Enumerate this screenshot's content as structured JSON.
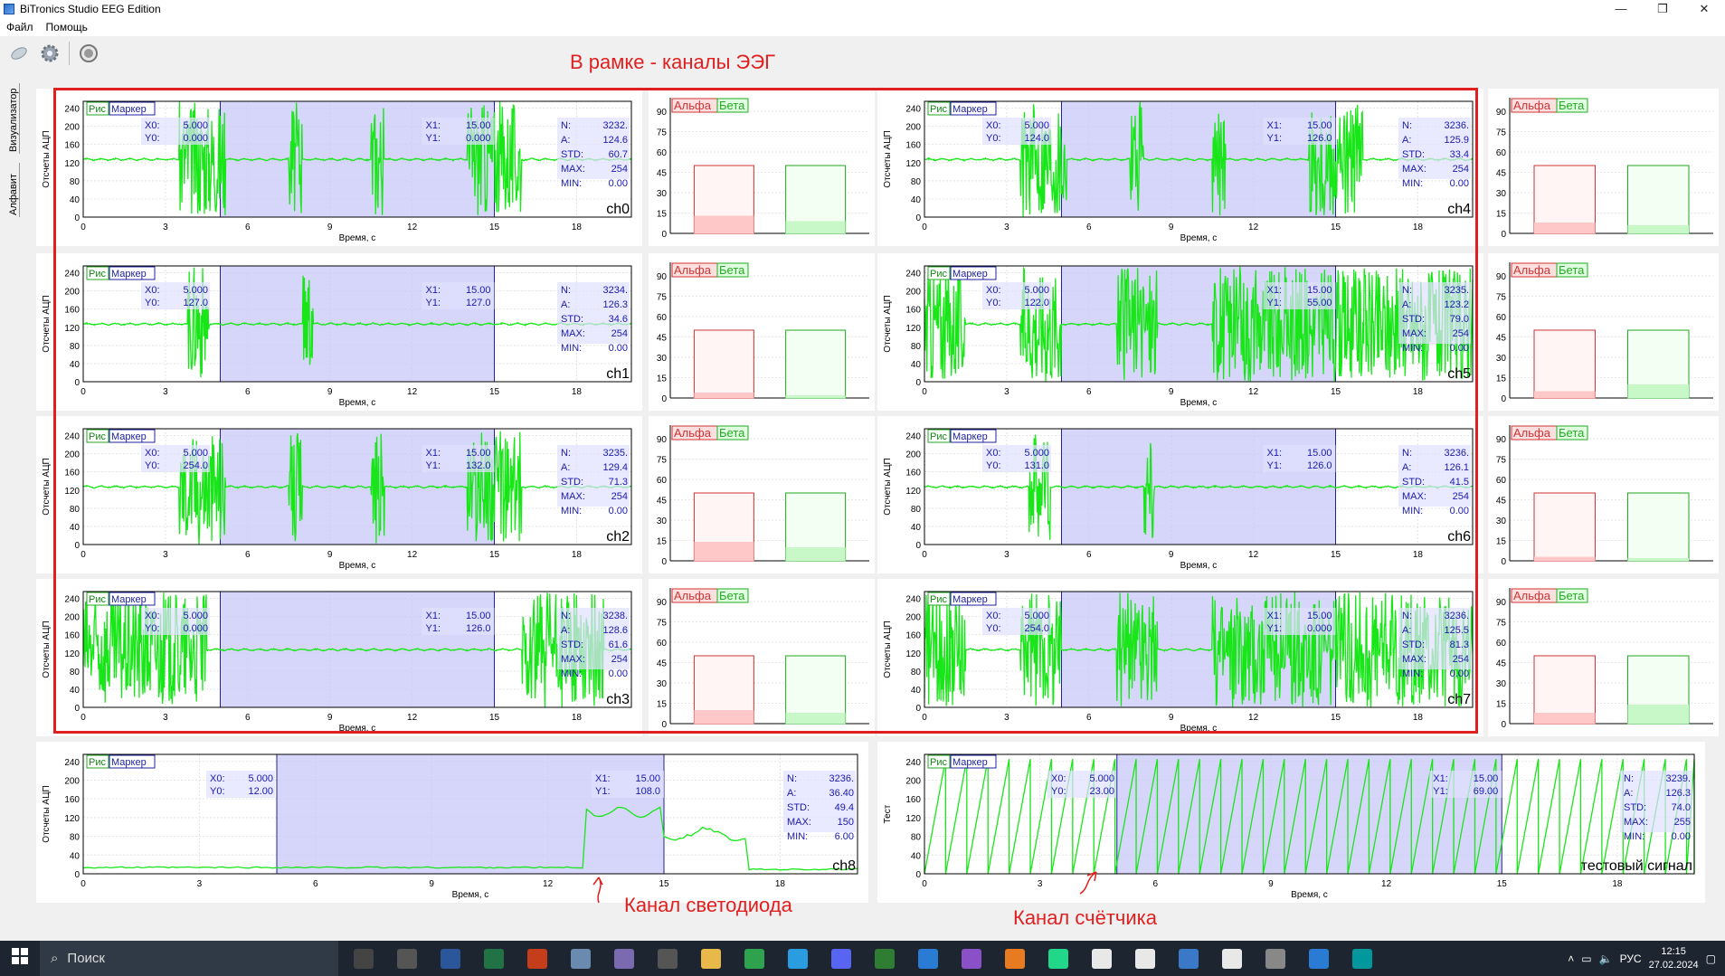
{
  "window": {
    "title": "BiTronics Studio EEG Edition",
    "controls": [
      "—",
      "❐",
      "✕"
    ]
  },
  "menu": [
    "Файл",
    "Помощь"
  ],
  "sidebar_tabs": [
    "Визуализатор",
    "Алфавит"
  ],
  "annotations": {
    "eeg_frame": "В рамке - каналы ЭЭГ",
    "led": "Канал светодиода",
    "counter": "Канал счётчика"
  },
  "channel_plot": {
    "ylabel": "Отсчеты АЦП",
    "xlabel": "Время, с",
    "yticks": [
      "240",
      "200",
      "160",
      "120",
      "80",
      "40",
      "0"
    ],
    "xticks": [
      "0",
      "3",
      "6",
      "9",
      "12",
      "15",
      "18"
    ],
    "btn_ris": "Рис",
    "btn_marker": "Маркер",
    "x0_label": "X0:",
    "y0_label": "Y0:",
    "x1_label": "X1:",
    "y1_label": "Y1:",
    "n_label": "N:",
    "a_label": "A:",
    "std_label": "STD:",
    "max_label": "MAX:",
    "min_label": "MIN:"
  },
  "bar_plot": {
    "yticks": [
      "90",
      "75",
      "60",
      "45",
      "30",
      "15",
      "0"
    ],
    "alpha_label": "Альфа",
    "beta_label": "Бета"
  },
  "channels": [
    {
      "name": "ch0",
      "x0": "5.000",
      "y0": "0.000",
      "x1": "15.00",
      "y1": "0.000",
      "n": "3232.",
      "a": "124.6",
      "std": "60.7",
      "max": "254",
      "min": "0.00",
      "alpha": 13,
      "beta": 9,
      "style": "mixed"
    },
    {
      "name": "ch1",
      "x0": "5.000",
      "y0": "127.0",
      "x1": "15.00",
      "y1": "127.0",
      "n": "3234.",
      "a": "126.3",
      "std": "34.6",
      "max": "254",
      "min": "0.00",
      "alpha": 4,
      "beta": 2,
      "style": "calm"
    },
    {
      "name": "ch2",
      "x0": "5.000",
      "y0": "254.0",
      "x1": "15.00",
      "y1": "132.0",
      "n": "3235.",
      "a": "129.4",
      "std": "71.3",
      "max": "254",
      "min": "0.00",
      "alpha": 14,
      "beta": 10,
      "style": "mixed"
    },
    {
      "name": "ch3",
      "x0": "5.000",
      "y0": "0.000",
      "x1": "15.00",
      "y1": "126.0",
      "n": "3238.",
      "a": "128.6",
      "std": "61.6",
      "max": "254",
      "min": "0.00",
      "alpha": 10,
      "beta": 8,
      "style": "noisy"
    },
    {
      "name": "ch4",
      "x0": "5.000",
      "y0": "124.0",
      "x1": "15.00",
      "y1": "126.0",
      "n": "3236.",
      "a": "125.9",
      "std": "33.4",
      "max": "254",
      "min": "0.00",
      "alpha": 8,
      "beta": 6,
      "style": "mixed"
    },
    {
      "name": "ch5",
      "x0": "5.000",
      "y0": "122.0",
      "x1": "15.00",
      "y1": "55.00",
      "n": "3235.",
      "a": "123.2",
      "std": "79.0",
      "max": "254",
      "min": "0.00",
      "alpha": 5,
      "beta": 10,
      "style": "dense"
    },
    {
      "name": "ch6",
      "x0": "5.000",
      "y0": "131.0",
      "x1": "15.00",
      "y1": "126.0",
      "n": "3236.",
      "a": "126.1",
      "std": "41.5",
      "max": "254",
      "min": "0.00",
      "alpha": 3,
      "beta": 2,
      "style": "calm"
    },
    {
      "name": "ch7",
      "x0": "5.000",
      "y0": "254.0",
      "x1": "15.00",
      "y1": "0.000",
      "n": "3236.",
      "a": "125.5",
      "std": "81.3",
      "max": "254",
      "min": "0.00",
      "alpha": 8,
      "beta": 14,
      "style": "dense"
    }
  ],
  "led_channel": {
    "name": "ch8",
    "ylabel": "Отсчеты АЦП",
    "x0": "5.000",
    "y0": "12.00",
    "x1": "15.00",
    "y1": "108.0",
    "n": "3236.",
    "a": "36.40",
    "std": "49.4",
    "max": "150",
    "min": "6.00"
  },
  "test_channel": {
    "name": "тестовый сигнал",
    "ylabel": "Тест",
    "x0": "5.000",
    "y0": "23.00",
    "x1": "15.00",
    "y1": "69.00",
    "n": "3239.",
    "a": "126.3",
    "std": "74.0",
    "max": "255",
    "min": "0.00"
  },
  "taskbar": {
    "search_placeholder": "Поиск",
    "lang": "РУС",
    "time": "12:15",
    "date": "27.02.2024"
  },
  "colors": {
    "signal": "#19e619",
    "marker": "#c8c8f8",
    "marker_edge": "#2020a0",
    "alpha": "#cc3333",
    "beta": "#22aa22",
    "frame": "#e02020"
  }
}
